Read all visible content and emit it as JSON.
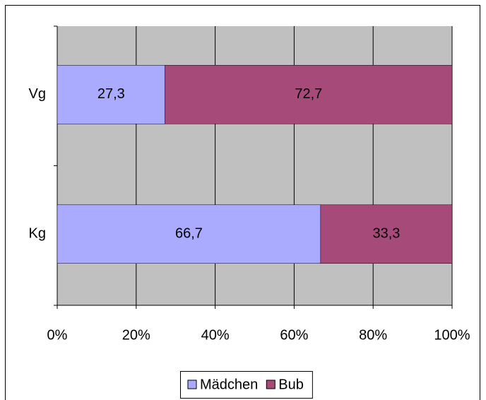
{
  "chart_data": {
    "type": "stacked_barh",
    "categories": [
      "Vg",
      "Kg"
    ],
    "series": [
      {
        "name": "Mädchen",
        "color": "#aaaaff",
        "values": [
          27.3,
          66.7
        ],
        "value_labels": [
          "27,3",
          "66,7"
        ]
      },
      {
        "name": "Bub",
        "color": "#a64b79",
        "values": [
          72.7,
          33.3
        ],
        "value_labels": [
          "72,7",
          "33,3"
        ]
      }
    ],
    "xlim": [
      0,
      100
    ],
    "xticks": [
      {
        "value": 0,
        "label": "0%"
      },
      {
        "value": 20,
        "label": "20%"
      },
      {
        "value": 40,
        "label": "40%"
      },
      {
        "value": 60,
        "label": "60%"
      },
      {
        "value": 80,
        "label": "80%"
      },
      {
        "value": 100,
        "label": "100%"
      }
    ],
    "grid": true,
    "legend": "bottom"
  }
}
